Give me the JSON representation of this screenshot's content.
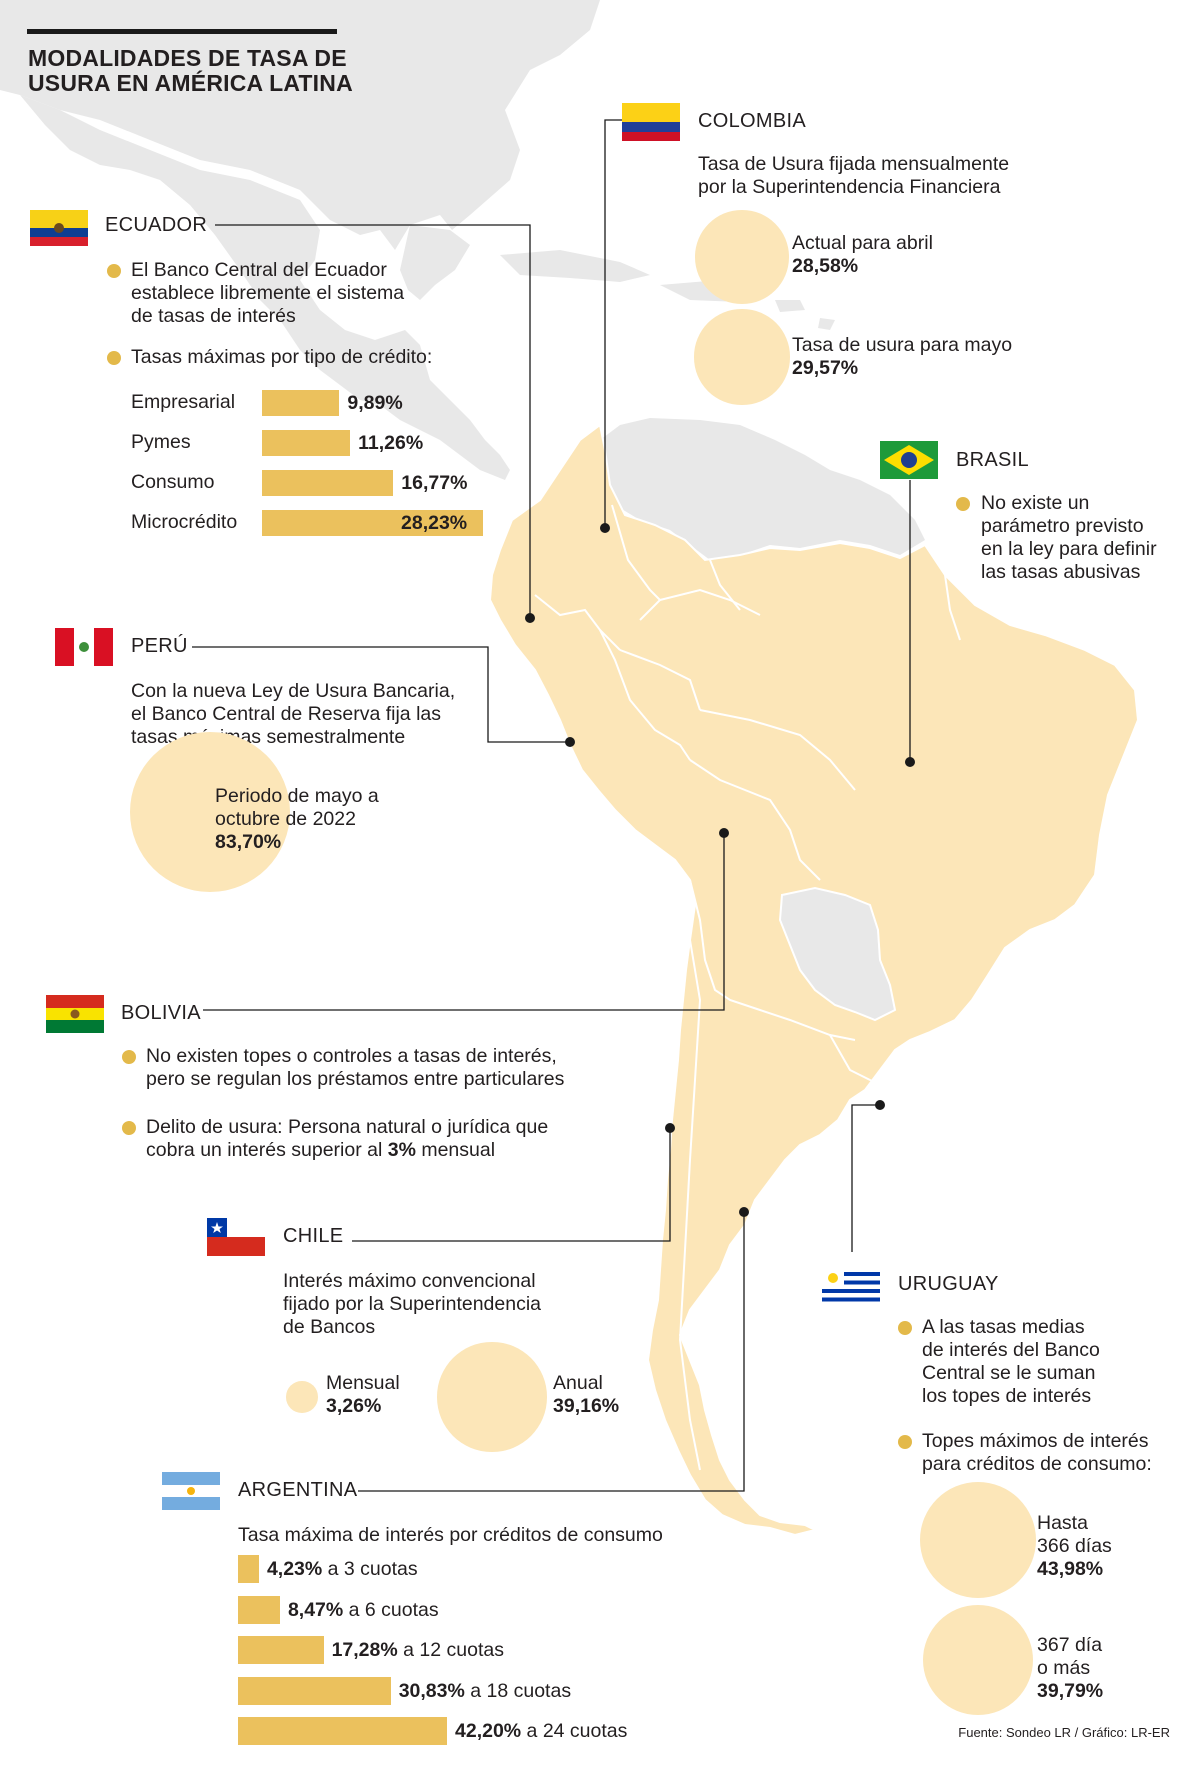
{
  "title_line1": "MODALIDADES DE TASA DE",
  "title_line2": "USURA EN AMÉRICA LATINA",
  "colors": {
    "land_highlight": "#fce6b8",
    "land_other": "#e8e8e8",
    "bar": "#ebc15d",
    "bullet": "#e3b94a",
    "circle": "#fce6b8",
    "line": "#1a1a1a"
  },
  "ecuador": {
    "name": "ECUADOR",
    "bullet1_line1": "El Banco Central del Ecuador",
    "bullet1_line2": "establece libremente el sistema",
    "bullet1_line3": "de tasas de interés",
    "bullet2": "Tasas máximas por tipo de crédito:",
    "flag_icon": "ecuador-flag-icon"
  },
  "colombia": {
    "name": "COLOMBIA",
    "desc_line1": "Tasa de Usura fijada mensualmente",
    "desc_line2": "por la Superintendencia Financiera",
    "c1_label": "Actual para abril",
    "c1_value": "28,58%",
    "c2_label": "Tasa de usura para mayo",
    "c2_value": "29,57%",
    "flag_icon": "colombia-flag-icon"
  },
  "brasil": {
    "name": "BRASIL",
    "line1": "No existe un",
    "line2": "parámetro previsto",
    "line3": "en la ley para definir",
    "line4": "las tasas abusivas",
    "flag_icon": "brazil-flag-icon"
  },
  "peru": {
    "name": "PERÚ",
    "desc_line1": "Con la nueva Ley de Usura Bancaria,",
    "desc_line2": "el Banco Central de Reserva fija las",
    "desc_line3": "tasas máximas semestralmente",
    "c_line1": "Periodo de mayo a",
    "c_line2": "octubre de 2022",
    "c_value": "83,70%",
    "flag_icon": "peru-flag-icon"
  },
  "bolivia": {
    "name": "BOLIVIA",
    "b1_line1": "No existen topes o controles a tasas de interés,",
    "b1_line2": "pero se regulan los préstamos entre particulares",
    "b2_line1": "Delito de usura: Persona natural o jurídica que",
    "b2_line2_pre": "cobra un interés superior al ",
    "b2_line2_bold": "3%",
    "b2_line2_post": " mensual",
    "flag_icon": "bolivia-flag-icon"
  },
  "chile": {
    "name": "CHILE",
    "desc_line1": "Interés máximo convencional",
    "desc_line2": "fijado por la Superintendencia",
    "desc_line3": "de Bancos",
    "m_label": "Mensual",
    "m_value": "3,26%",
    "a_label": "Anual",
    "a_value": "39,16%",
    "flag_icon": "chile-flag-icon"
  },
  "uruguay": {
    "name": "URUGUAY",
    "b1_line1": "A las tasas medias",
    "b1_line2": "de interés del Banco",
    "b1_line3": "Central se le suman",
    "b1_line4": "los topes de interés",
    "b2_line1": "Topes máximos de interés",
    "b2_line2": "para créditos de consumo:",
    "c1_line1": "Hasta",
    "c1_line2": "366 días",
    "c1_value": "43,98%",
    "c2_line1": "367 día",
    "c2_line2": "o más",
    "c2_value": "39,79%",
    "flag_icon": "uruguay-flag-icon"
  },
  "argentina": {
    "name": "ARGENTINA",
    "desc": "Tasa máxima de interés por créditos de consumo",
    "flag_icon": "argentina-flag-icon"
  },
  "source": "Fuente: Sondeo LR / Gráfico: LR-ER",
  "chart_data": [
    {
      "type": "bar",
      "title": "Tasas máximas por tipo de crédito:",
      "categories": [
        "Empresarial",
        "Pymes",
        "Consumo",
        "Microcrédito"
      ],
      "values": [
        9.89,
        11.26,
        16.77,
        28.23
      ],
      "value_labels": [
        "9,89%",
        "11,26%",
        "16,77%",
        "28,23%"
      ]
    },
    {
      "type": "bar",
      "title": "Tasa máxima de interés por créditos de consumo",
      "values": [
        4.23,
        8.47,
        17.28,
        30.83,
        42.2
      ],
      "value_labels": [
        "4,23%",
        "8,47%",
        "17,28%",
        "30,83%",
        "42,20%"
      ],
      "suffixes": [
        " a 3 cuotas",
        " a 6 cuotas",
        " a 12 cuotas",
        " a 18 cuotas",
        " a 24 cuotas"
      ]
    },
    {
      "type": "bubble",
      "labels": [
        "Actual para abril",
        "Tasa de usura para mayo",
        "Periodo de mayo a octubre de 2022",
        "Mensual",
        "Anual",
        "Hasta 366 días",
        "367 día o más"
      ],
      "values": [
        28.58,
        29.57,
        83.7,
        3.26,
        39.16,
        43.98,
        39.79
      ]
    }
  ]
}
